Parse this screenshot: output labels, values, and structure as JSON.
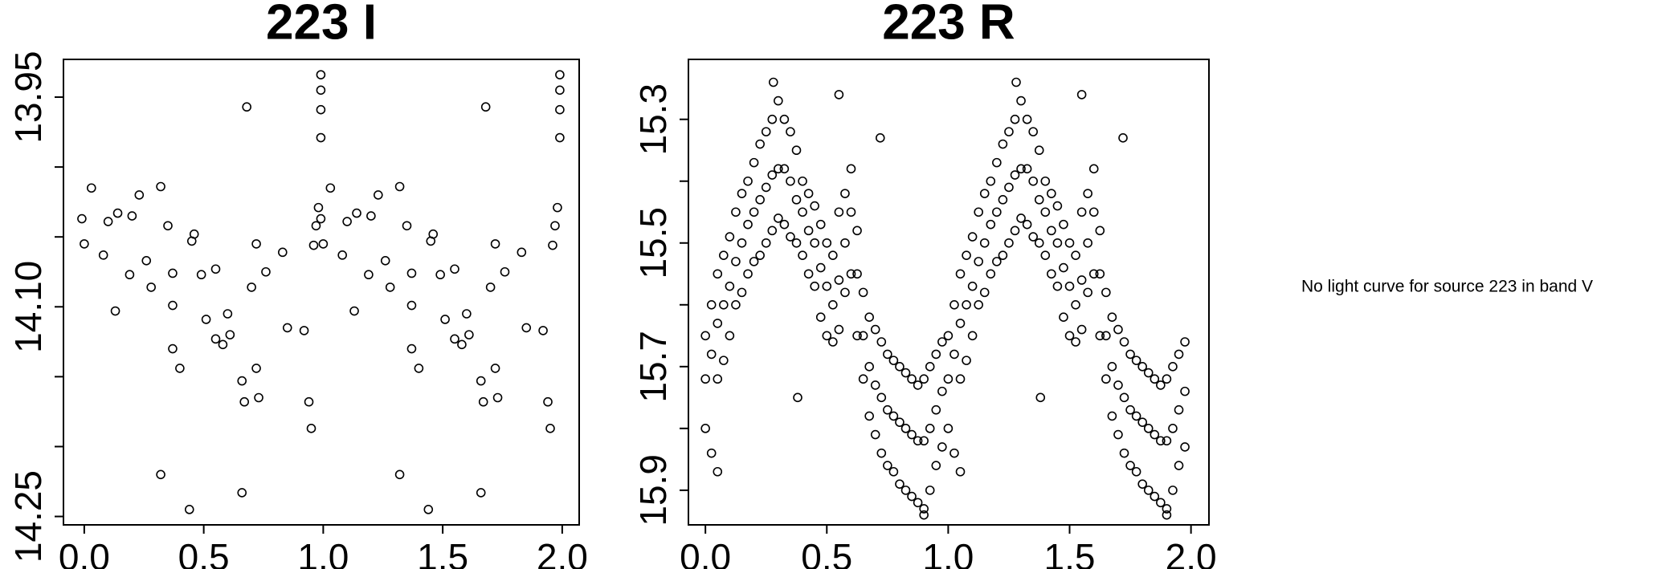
{
  "chart_data": [
    {
      "type": "scatter",
      "title": "223 I",
      "color": "#000000",
      "xlim": [
        -0.087,
        2.071
      ],
      "ylim": [
        14.256,
        13.923
      ],
      "xticks": [
        {
          "value": 0,
          "label": "0.0"
        },
        0.5,
        {
          "value": 1,
          "label": "1.0"
        },
        1.5,
        {
          "value": 2,
          "label": "2.0"
        }
      ],
      "yticks": [
        13.95,
        {
          "value": 14.0,
          "label": null
        },
        {
          "value": 14.05,
          "label": null
        },
        {
          "value": 14.1,
          "label": "14.10"
        },
        {
          "value": 14.15,
          "label": null
        },
        {
          "value": 14.2,
          "label": null
        },
        14.25
      ],
      "x": [
        -0.01,
        0.0,
        0.03,
        0.08,
        0.1,
        0.13,
        0.14,
        0.19,
        0.2,
        0.23,
        0.26,
        0.28,
        0.32,
        0.32,
        0.35,
        0.37,
        0.37,
        0.37,
        0.4,
        0.44,
        0.45,
        0.46,
        0.49,
        0.51,
        0.55,
        0.55,
        0.58,
        0.6,
        0.61,
        0.66,
        0.66,
        0.67,
        0.68,
        0.7,
        0.72,
        0.72,
        0.73,
        0.76,
        0.83,
        0.85,
        0.92,
        0.94,
        0.95,
        0.96,
        0.97,
        0.98,
        0.99,
        0.99,
        0.99,
        0.99,
        0.99,
        1.0,
        1.03,
        1.08,
        1.1,
        1.13,
        1.14,
        1.19,
        1.2,
        1.23,
        1.26,
        1.28,
        1.32,
        1.32,
        1.35,
        1.37,
        1.37,
        1.37,
        1.4,
        1.44,
        1.45,
        1.46,
        1.49,
        1.51,
        1.55,
        1.55,
        1.58,
        1.6,
        1.61,
        1.66,
        1.66,
        1.67,
        1.68,
        1.7,
        1.72,
        1.72,
        1.73,
        1.76,
        1.83,
        1.85,
        1.92,
        1.94,
        1.95,
        1.96,
        1.97,
        1.98,
        1.99,
        1.99,
        1.99,
        1.99
      ],
      "values": [
        14.037,
        14.055,
        14.015,
        14.063,
        14.039,
        14.103,
        14.033,
        14.077,
        14.035,
        14.02,
        14.067,
        14.086,
        14.22,
        14.014,
        14.042,
        14.076,
        14.099,
        14.13,
        14.144,
        14.245,
        14.053,
        14.048,
        14.077,
        14.109,
        14.073,
        14.123,
        14.127,
        14.105,
        14.12,
        14.153,
        14.233,
        14.168,
        13.957,
        14.086,
        14.055,
        14.144,
        14.165,
        14.075,
        14.061,
        14.115,
        14.117,
        14.168,
        14.187,
        14.056,
        14.042,
        14.029,
        13.934,
        13.945,
        13.959,
        13.979,
        14.037,
        14.055,
        14.015,
        14.063,
        14.039,
        14.103,
        14.033,
        14.077,
        14.035,
        14.02,
        14.067,
        14.086,
        14.22,
        14.014,
        14.042,
        14.076,
        14.099,
        14.13,
        14.144,
        14.245,
        14.053,
        14.048,
        14.077,
        14.109,
        14.073,
        14.123,
        14.127,
        14.105,
        14.12,
        14.153,
        14.233,
        14.168,
        13.957,
        14.086,
        14.055,
        14.144,
        14.165,
        14.075,
        14.061,
        14.115,
        14.117,
        14.168,
        14.187,
        14.056,
        14.042,
        14.029,
        13.934,
        13.945,
        13.959,
        13.979
      ]
    },
    {
      "type": "scatter",
      "title": "223 R",
      "color": "#000000",
      "xlim": [
        -0.07,
        2.074
      ],
      "ylim": [
        15.956,
        15.203
      ],
      "xticks": [
        {
          "value": 0,
          "label": "0.0"
        },
        0.5,
        {
          "value": 1,
          "label": "1.0"
        },
        1.5,
        {
          "value": 2,
          "label": "2.0"
        }
      ],
      "yticks": [
        15.3,
        {
          "value": 15.4,
          "label": null
        },
        15.5,
        {
          "value": 15.6,
          "label": null
        },
        15.7,
        {
          "value": 15.8,
          "label": null
        },
        15.9
      ],
      "x": [
        0,
        0,
        0.025,
        0.025,
        0.05,
        0.05,
        0.075,
        0.075,
        0.1,
        0.1,
        0.125,
        0.125,
        0.15,
        0.15,
        0.175,
        0.175,
        0.2,
        0.2,
        0.225,
        0.225,
        0.25,
        0.25,
        0.275,
        0.275,
        0.3,
        0.3,
        0.325,
        0.325,
        0.35,
        0.35,
        0.375,
        0.375,
        0.4,
        0.4,
        0.425,
        0.425,
        0.45,
        0.45,
        0.475,
        0.475,
        0.5,
        0.5,
        0.525,
        0.525,
        0.55,
        0.55,
        0.575,
        0.575,
        0.6,
        0.6,
        0.625,
        0.625,
        0.65,
        0.65,
        0.675,
        0.675,
        0.7,
        0.7,
        0.725,
        0.725,
        0.75,
        0.75,
        0.775,
        0.775,
        0.8,
        0.8,
        0.825,
        0.825,
        0.85,
        0.85,
        0.875,
        0.875,
        0.9,
        0.9,
        0.925,
        0.925,
        0.95,
        0.95,
        0.975,
        0.975,
        0.28,
        0.55,
        0.38,
        0.9,
        0.72,
        0.05,
        0,
        0.025,
        0.05,
        0.075,
        0.1,
        0.125,
        0.15,
        0.175,
        0.2,
        0.225,
        0.25,
        0.275,
        0.3,
        0.325,
        0.35,
        0.375,
        0.4,
        0.425,
        0.45,
        0.475,
        0.5,
        0.525,
        0.55,
        0.575,
        0.6,
        0.625,
        0.65,
        0.675,
        0.7,
        0.725,
        0.75,
        0.775,
        0.8,
        0.825,
        0.85,
        0.875,
        0.9,
        0.925,
        0.95,
        0.975,
        1,
        1,
        1.025,
        1.025,
        1.05,
        1.05,
        1.075,
        1.075,
        1.1,
        1.1,
        1.125,
        1.125,
        1.15,
        1.15,
        1.175,
        1.175,
        1.2,
        1.2,
        1.225,
        1.225,
        1.25,
        1.25,
        1.275,
        1.275,
        1.3,
        1.3,
        1.325,
        1.325,
        1.35,
        1.35,
        1.375,
        1.375,
        1.4,
        1.4,
        1.425,
        1.425,
        1.45,
        1.45,
        1.475,
        1.475,
        1.5,
        1.5,
        1.525,
        1.525,
        1.55,
        1.55,
        1.575,
        1.575,
        1.6,
        1.6,
        1.625,
        1.625,
        1.65,
        1.65,
        1.675,
        1.675,
        1.7,
        1.7,
        1.725,
        1.725,
        1.75,
        1.75,
        1.775,
        1.775,
        1.8,
        1.8,
        1.825,
        1.825,
        1.85,
        1.85,
        1.875,
        1.875,
        1.9,
        1.9,
        1.925,
        1.925,
        1.95,
        1.95,
        1.975,
        1.975,
        1.28,
        1.55,
        1.38,
        1.9,
        1.72,
        1.05,
        1,
        1.025,
        1.05,
        1.075,
        1.1,
        1.125,
        1.15,
        1.175,
        1.2,
        1.225,
        1.25,
        1.275,
        1.3,
        1.325,
        1.35,
        1.375,
        1.4,
        1.425,
        1.45,
        1.475,
        1.5,
        1.525,
        1.55,
        1.575,
        1.6,
        1.625,
        1.65,
        1.675,
        1.7,
        1.725,
        1.75,
        1.775,
        1.8,
        1.825,
        1.85,
        1.875,
        1.9,
        1.925,
        1.95,
        1.975
      ],
      "values": [
        15.65,
        15.8,
        15.6,
        15.84,
        15.55,
        15.72,
        15.52,
        15.69,
        15.49,
        15.65,
        15.45,
        15.6,
        15.42,
        15.58,
        15.4,
        15.55,
        15.37,
        15.53,
        15.34,
        15.52,
        15.32,
        15.5,
        15.3,
        15.48,
        15.27,
        15.46,
        15.3,
        15.47,
        15.32,
        15.49,
        15.35,
        15.5,
        15.4,
        15.52,
        15.42,
        15.55,
        15.44,
        15.57,
        15.47,
        15.62,
        15.5,
        15.65,
        15.52,
        15.66,
        15.45,
        15.64,
        15.42,
        15.58,
        15.38,
        15.55,
        15.48,
        15.65,
        15.58,
        15.72,
        15.62,
        15.78,
        15.64,
        15.81,
        15.66,
        15.84,
        15.68,
        15.86,
        15.69,
        15.87,
        15.7,
        15.89,
        15.71,
        15.9,
        15.72,
        15.91,
        15.73,
        15.92,
        15.72,
        15.93,
        15.7,
        15.9,
        15.68,
        15.86,
        15.66,
        15.83,
        15.24,
        15.26,
        15.75,
        15.94,
        15.33,
        15.87,
        15.72,
        15.68,
        15.63,
        15.6,
        15.57,
        15.53,
        15.5,
        15.47,
        15.45,
        15.43,
        15.41,
        15.39,
        15.38,
        15.38,
        15.4,
        15.43,
        15.45,
        15.48,
        15.5,
        15.54,
        15.57,
        15.6,
        15.56,
        15.5,
        15.45,
        15.55,
        15.65,
        15.7,
        15.73,
        15.75,
        15.77,
        15.78,
        15.79,
        15.8,
        15.81,
        15.82,
        15.82,
        15.8,
        15.77,
        15.74,
        15.65,
        15.8,
        15.6,
        15.84,
        15.55,
        15.72,
        15.52,
        15.69,
        15.49,
        15.65,
        15.45,
        15.6,
        15.42,
        15.58,
        15.4,
        15.55,
        15.37,
        15.53,
        15.34,
        15.52,
        15.32,
        15.5,
        15.3,
        15.48,
        15.27,
        15.46,
        15.3,
        15.47,
        15.32,
        15.49,
        15.35,
        15.5,
        15.4,
        15.52,
        15.42,
        15.55,
        15.44,
        15.57,
        15.47,
        15.62,
        15.5,
        15.65,
        15.52,
        15.66,
        15.45,
        15.64,
        15.42,
        15.58,
        15.38,
        15.55,
        15.48,
        15.65,
        15.58,
        15.72,
        15.62,
        15.78,
        15.64,
        15.81,
        15.66,
        15.84,
        15.68,
        15.86,
        15.69,
        15.87,
        15.7,
        15.89,
        15.71,
        15.9,
        15.72,
        15.91,
        15.73,
        15.92,
        15.72,
        15.93,
        15.7,
        15.9,
        15.68,
        15.86,
        15.66,
        15.83,
        15.24,
        15.26,
        15.75,
        15.94,
        15.33,
        15.87,
        15.72,
        15.68,
        15.63,
        15.6,
        15.57,
        15.53,
        15.5,
        15.47,
        15.45,
        15.43,
        15.41,
        15.39,
        15.38,
        15.38,
        15.4,
        15.43,
        15.45,
        15.48,
        15.5,
        15.54,
        15.57,
        15.6,
        15.56,
        15.5,
        15.45,
        15.55,
        15.65,
        15.7,
        15.73,
        15.75,
        15.77,
        15.78,
        15.79,
        15.8,
        15.81,
        15.82,
        15.82,
        15.8,
        15.77,
        15.74
      ]
    }
  ],
  "note": "No light curve for source 223 in band V"
}
